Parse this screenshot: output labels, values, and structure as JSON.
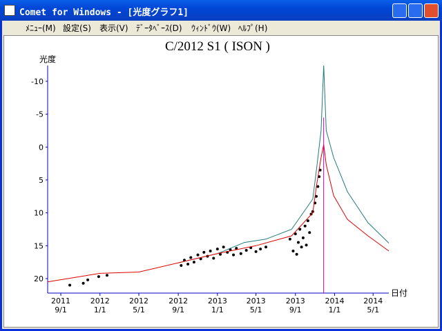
{
  "window": {
    "title": "Comet for Windows - [光度グラフ1]",
    "menu": [
      "ﾒﾆｭｰ(M)",
      "設定(S)",
      "表示(V)",
      "ﾃﾞｰﾀﾍﾞｰｽ(D)",
      "ｳｨﾝﾄﾞｳ(W)",
      "ﾍﾙﾌﾟ(H)"
    ]
  },
  "chart_data": {
    "type": "line",
    "title": "C/2012 S1 ( ISON )",
    "y_label": "光度",
    "x_label": "日付",
    "ylim": [
      22.2,
      -12.4
    ],
    "yticks": [
      -10,
      -5,
      0,
      5,
      10,
      15,
      20
    ],
    "xlim": [
      "2011-07-22",
      "2014-06-19"
    ],
    "xticks": [
      {
        "value": "2011-09-01",
        "label": [
          "2011",
          "9/1"
        ]
      },
      {
        "value": "2012-01-01",
        "label": [
          "2012",
          "1/1"
        ]
      },
      {
        "value": "2012-05-01",
        "label": [
          "2012",
          "5/1"
        ]
      },
      {
        "value": "2012-09-01",
        "label": [
          "2012",
          "9/1"
        ]
      },
      {
        "value": "2013-01-01",
        "label": [
          "2013",
          "1/1"
        ]
      },
      {
        "value": "2013-05-01",
        "label": [
          "2013",
          "5/1"
        ]
      },
      {
        "value": "2013-09-01",
        "label": [
          "2013",
          "9/1"
        ]
      },
      {
        "value": "2014-01-01",
        "label": [
          "2014",
          "1/1"
        ]
      },
      {
        "value": "2014-05-01",
        "label": [
          "2014",
          "5/1"
        ]
      }
    ],
    "axis_color": "#0000c0",
    "series": [
      {
        "color": "#207a7a",
        "x": [
          "2012-09-01",
          "2013-01-01",
          "2013-03-26",
          "2013-06-01",
          "2013-08-20",
          "2013-10-25",
          "2013-11-06",
          "2013-11-20",
          "2013-11-28",
          "2013-12-06",
          "2013-12-29",
          "2014-02-10",
          "2014-04-15",
          "2014-06-19"
        ],
        "values": [
          17.6,
          16.2,
          14.5,
          14.0,
          12.5,
          7.9,
          3.3,
          -2.5,
          -12.4,
          -2.5,
          1.6,
          6.8,
          11.5,
          14.6
        ]
      },
      {
        "color": "#e00000",
        "x": [
          "2011-07-22",
          "2012-01-01",
          "2012-05-01",
          "2012-09-01",
          "2013-01-01",
          "2013-05-01",
          "2013-08-20",
          "2013-10-25",
          "2013-11-06",
          "2013-11-20",
          "2013-11-28",
          "2013-12-06",
          "2013-12-29",
          "2014-02-10",
          "2014-04-15",
          "2014-06-19"
        ],
        "values": [
          20.5,
          19.2,
          19.0,
          17.6,
          16.2,
          15.0,
          13.5,
          10.0,
          5.8,
          1.6,
          -0.4,
          2.7,
          7.4,
          11.0,
          13.5,
          15.8
        ]
      }
    ],
    "perihelion": {
      "x": "2013-11-28",
      "value": -4.5,
      "color": "#c000c0"
    },
    "observations": {
      "color": "#000000",
      "x": [
        "2011-09-29",
        "2011-11-10",
        "2011-11-24",
        "2011-12-28",
        "2012-01-23",
        "2012-09-10",
        "2012-09-20",
        "2012-10-01",
        "2012-10-10",
        "2012-10-20",
        "2012-11-01",
        "2012-11-10",
        "2012-11-20",
        "2012-12-01",
        "2012-12-10",
        "2012-12-20",
        "2013-01-01",
        "2013-01-10",
        "2013-01-20",
        "2013-02-01",
        "2013-02-10",
        "2013-02-20",
        "2013-03-01",
        "2013-03-15",
        "2013-04-01",
        "2013-04-15",
        "2013-05-01",
        "2013-05-15",
        "2013-06-01",
        "2013-08-15",
        "2013-08-25",
        "2013-09-01",
        "2013-09-05",
        "2013-09-10",
        "2013-09-15",
        "2013-09-20",
        "2013-09-25",
        "2013-10-01",
        "2013-10-05",
        "2013-10-10",
        "2013-10-15",
        "2013-10-20",
        "2013-10-25",
        "2013-11-01",
        "2013-11-05",
        "2013-11-10",
        "2013-11-14",
        "2013-11-17"
      ],
      "values": [
        21.0,
        20.7,
        20.2,
        19.7,
        19.5,
        18.0,
        17.2,
        17.8,
        16.8,
        17.5,
        16.4,
        17.0,
        16.0,
        16.6,
        15.8,
        16.9,
        15.5,
        16.3,
        15.2,
        16.0,
        15.6,
        16.4,
        15.4,
        16.2,
        15.7,
        15.3,
        15.9,
        15.5,
        15.2,
        14.0,
        15.8,
        13.2,
        16.3,
        14.5,
        12.5,
        15.2,
        13.8,
        12.0,
        14.9,
        11.2,
        13.0,
        10.2,
        9.8,
        8.5,
        7.5,
        6.0,
        4.5,
        3.5
      ]
    }
  }
}
